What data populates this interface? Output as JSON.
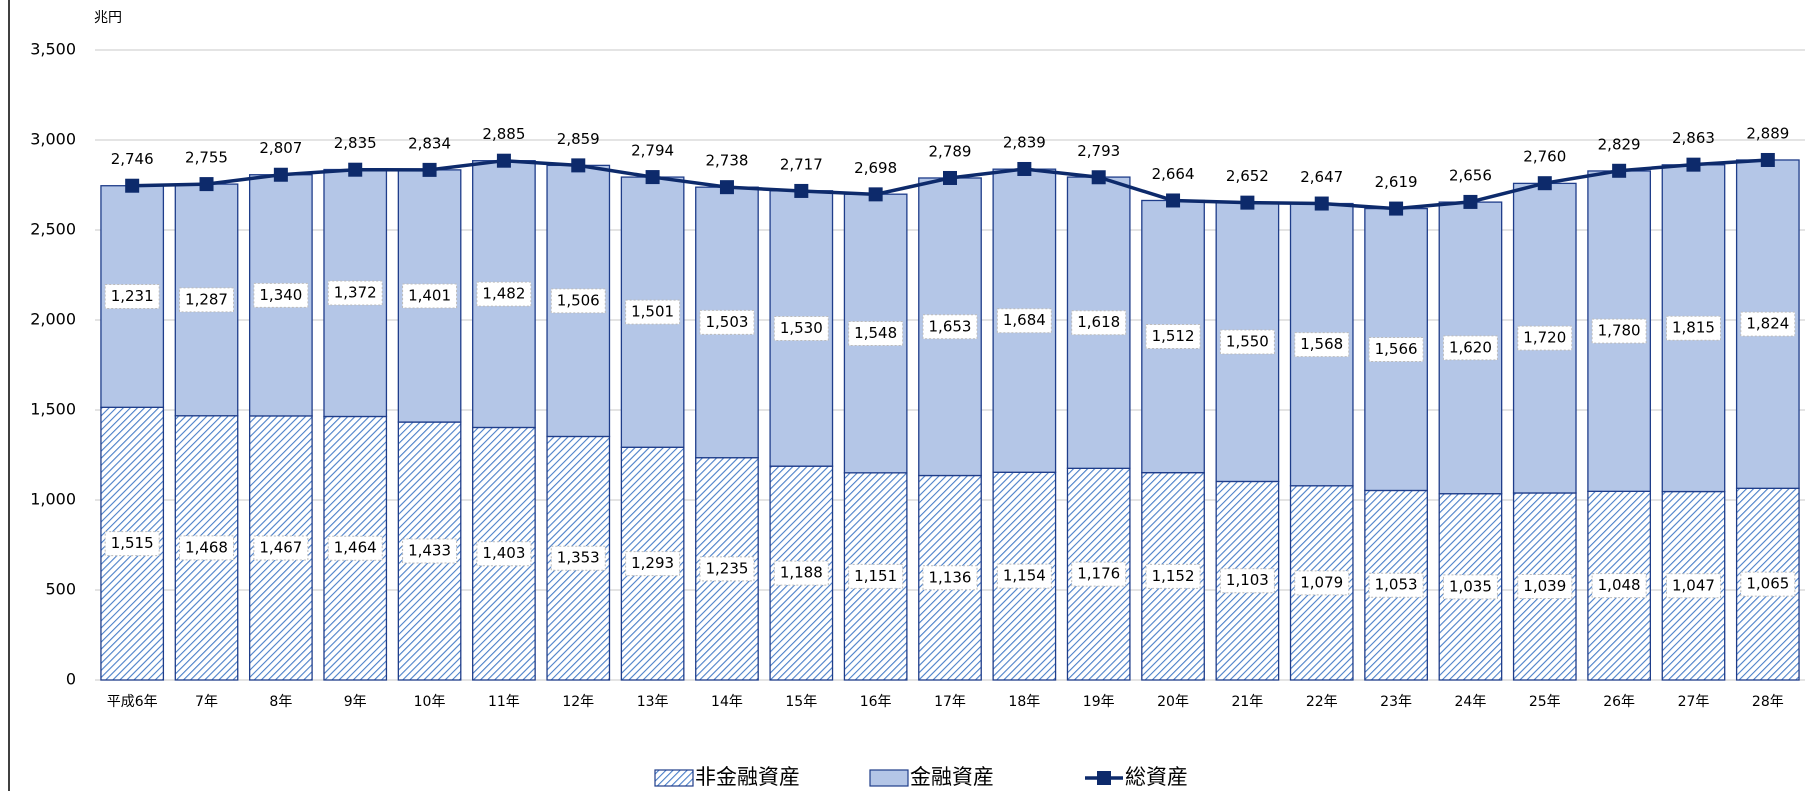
{
  "chart_data": {
    "type": "stacked-bar-line",
    "y_label": "兆円",
    "categories": [
      "平成6年",
      "7年",
      "8年",
      "9年",
      "10年",
      "11年",
      "12年",
      "13年",
      "14年",
      "15年",
      "16年",
      "17年",
      "18年",
      "19年",
      "20年",
      "21年",
      "22年",
      "23年",
      "24年",
      "25年",
      "26年",
      "27年",
      "28年"
    ],
    "series": [
      {
        "name": "非金融資産",
        "type": "bar",
        "color": "#4a7fc8",
        "pattern": "hatch",
        "values": [
          1515,
          1468,
          1467,
          1464,
          1433,
          1403,
          1353,
          1293,
          1235,
          1188,
          1151,
          1136,
          1154,
          1176,
          1152,
          1103,
          1079,
          1053,
          1035,
          1039,
          1048,
          1047,
          1065
        ],
        "value_labels": [
          "1,515",
          "1,468",
          "1,467",
          "1,464",
          "1,433",
          "1,403",
          "1,353",
          "1,293",
          "1,235",
          "1,188",
          "1,151",
          "1,136",
          "1,154",
          "1,176",
          "1,152",
          "1,103",
          "1,079",
          "1,053",
          "1,035",
          "1,039",
          "1,048",
          "1,047",
          "1,065"
        ]
      },
      {
        "name": "金融資産",
        "type": "bar",
        "color": "#b4c6e7",
        "values": [
          1231,
          1287,
          1340,
          1372,
          1401,
          1482,
          1506,
          1501,
          1503,
          1530,
          1548,
          1653,
          1684,
          1618,
          1512,
          1550,
          1568,
          1566,
          1620,
          1720,
          1780,
          1815,
          1824
        ],
        "value_labels": [
          "1,231",
          "1,287",
          "1,340",
          "1,372",
          "1,401",
          "1,482",
          "1,506",
          "1,501",
          "1,503",
          "1,530",
          "1,548",
          "1,653",
          "1,684",
          "1,618",
          "1,512",
          "1,550",
          "1,568",
          "1,566",
          "1,620",
          "1,720",
          "1,780",
          "1,815",
          "1,824"
        ]
      },
      {
        "name": "総資産",
        "type": "line",
        "color": "#0d2a6b",
        "values": [
          2746,
          2755,
          2807,
          2835,
          2834,
          2885,
          2859,
          2794,
          2738,
          2717,
          2698,
          2789,
          2839,
          2793,
          2664,
          2652,
          2647,
          2619,
          2656,
          2760,
          2829,
          2863,
          2889
        ],
        "value_labels": [
          "2,746",
          "2,755",
          "2,807",
          "2,835",
          "2,834",
          "2,885",
          "2,859",
          "2,794",
          "2,738",
          "2,717",
          "2,698",
          "2,789",
          "2,839",
          "2,793",
          "2,664",
          "2,652",
          "2,647",
          "2,619",
          "2,656",
          "2,760",
          "2,829",
          "2,863",
          "2,889"
        ]
      }
    ],
    "ylim": [
      0,
      3500
    ],
    "yticks": [
      0,
      500,
      {
        "value": 1000,
        "label": "1,000"
      },
      {
        "value": 1500,
        "label": "1,500"
      },
      {
        "value": 2000,
        "label": "2,000"
      },
      {
        "value": 2500,
        "label": "2,500"
      },
      {
        "value": 3000,
        "label": "3,000"
      },
      {
        "value": 3500,
        "label": "3,500"
      }
    ],
    "grid": true,
    "legend": "bottom"
  }
}
